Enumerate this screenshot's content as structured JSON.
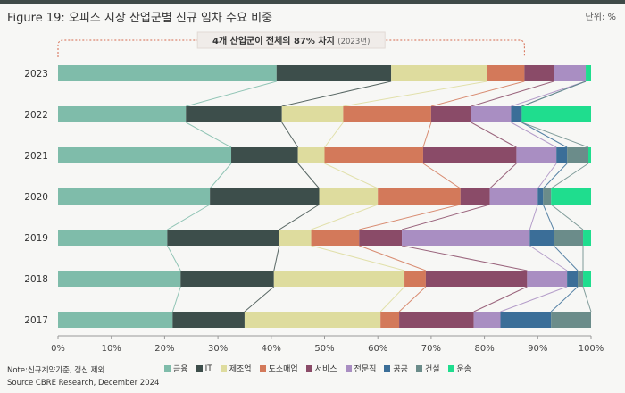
{
  "header": {
    "title": "Figure 19: 오피스 시장 산업군별 신규 임차 수요 비중",
    "unit": "단위: %"
  },
  "footer": {
    "note": "Note:신규계약기준, 갱신 제외",
    "source": "Source CBRE Research, December 2024"
  },
  "colors": {
    "금융": "#7fbcaa",
    "IT": "#3d4e4b",
    "제조업": "#dedc9e",
    "도소매업": "#d3795a",
    "서비스": "#8a4b68",
    "전문직": "#a98ec2",
    "공공": "#3b6e98",
    "건설": "#6b8c8a",
    "운송": "#1fdd8e"
  },
  "chart_data": {
    "type": "bar",
    "orientation": "horizontal",
    "stacked": true,
    "categories": [
      "2023",
      "2022",
      "2021",
      "2020",
      "2019",
      "2018",
      "2017"
    ],
    "series": [
      {
        "name": "금융",
        "values": [
          41,
          24,
          32.5,
          28.5,
          20.5,
          23,
          21.5
        ]
      },
      {
        "name": "IT",
        "values": [
          21.5,
          18,
          12.5,
          20.5,
          21,
          17.5,
          13.5
        ]
      },
      {
        "name": "제조업",
        "values": [
          18,
          11.5,
          5,
          11,
          6,
          24.5,
          25.5
        ]
      },
      {
        "name": "도소매업",
        "values": [
          7,
          16.5,
          18.5,
          15.5,
          9,
          4,
          3.5
        ]
      },
      {
        "name": "서비스",
        "values": [
          5.5,
          7.5,
          17.5,
          5.5,
          8,
          19,
          14
        ]
      },
      {
        "name": "전문직",
        "values": [
          6,
          7.5,
          7.5,
          9,
          24,
          7.5,
          5
        ]
      },
      {
        "name": "공공",
        "values": [
          0,
          2,
          2,
          1,
          4.5,
          2,
          9.5
        ]
      },
      {
        "name": "건설",
        "values": [
          0,
          0,
          4,
          1.5,
          5.5,
          1,
          7.5
        ]
      },
      {
        "name": "운송",
        "values": [
          1,
          13,
          0.5,
          7.5,
          1.5,
          1.5,
          1
        ]
      }
    ],
    "xlim": [
      0,
      100
    ],
    "x_ticks": [
      "0%",
      "10%",
      "20%",
      "30%",
      "40%",
      "50%",
      "60%",
      "70%",
      "80%",
      "90%",
      "100%"
    ],
    "annotation": {
      "text": "4개 산업군이 전체의 87% 차지",
      "sub": "(2023년)"
    },
    "legend_position": "bottom",
    "connector_lines": true
  }
}
